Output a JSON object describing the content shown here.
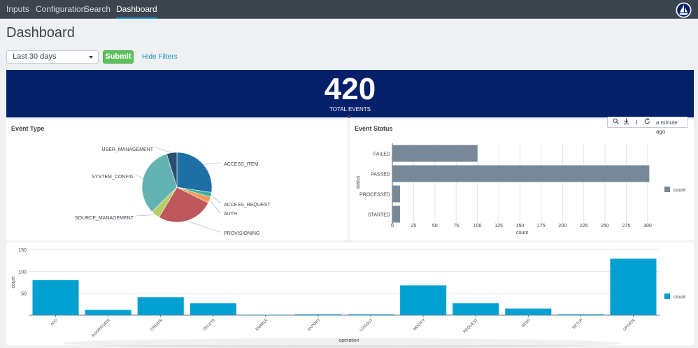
{
  "nav": {
    "items": [
      {
        "label": "Inputs"
      },
      {
        "label": "Configuration"
      },
      {
        "label": "Search"
      },
      {
        "label": "Dashboard"
      }
    ],
    "active": "Dashboard"
  },
  "page": {
    "title": "Dashboard"
  },
  "filters": {
    "time_range": "Last 30 days",
    "submit_label": "Submit",
    "hide_filters_label": "Hide Filters"
  },
  "single_value": {
    "value": "420",
    "label": "TOTAL EVENTS",
    "background": "#04206b"
  },
  "toolbar": {
    "icons": [
      "search-icon",
      "download-icon",
      "info-icon",
      "refresh-icon"
    ],
    "refresh_text": "a minute ago"
  },
  "panels": {
    "event_type": {
      "title": "Event Type"
    },
    "event_status": {
      "title": "Event Status"
    }
  },
  "chart_data": [
    {
      "type": "pie",
      "title": "Event Type",
      "slices": [
        {
          "label": "ACCESS_ITEM",
          "value": 115,
          "color": "#1e6fa3"
        },
        {
          "label": "ACCESS_REQUEST",
          "value": 9,
          "color": "#3db0a0"
        },
        {
          "label": "AUTH",
          "value": 12,
          "color": "#f29b58"
        },
        {
          "label": "PROVISIONING",
          "value": 110,
          "color": "#bd575b"
        },
        {
          "label": "SOURCE_MANAGEMENT",
          "value": 17,
          "color": "#b6cc64"
        },
        {
          "label": "SYSTEM_CONFIG",
          "value": 137,
          "color": "#62b3b1"
        },
        {
          "label": "USER_MANAGEMENT",
          "value": 20,
          "color": "#2b4d6e"
        }
      ]
    },
    {
      "type": "bar",
      "orientation": "horizontal",
      "title": "Event Status",
      "xlabel": "count",
      "ylabel": "status",
      "categories": [
        "FAILED",
        "PASSED",
        "PROCESSED",
        "STARTED"
      ],
      "series": [
        {
          "name": "count",
          "values": [
            100,
            302,
            9,
            9
          ],
          "color": "#778998"
        }
      ],
      "xlim": [
        0,
        305
      ],
      "xticks": [
        0,
        25,
        50,
        75,
        100,
        125,
        150,
        175,
        200,
        225,
        250,
        275,
        300
      ],
      "grid": true,
      "legend": "right"
    },
    {
      "type": "bar",
      "title": "",
      "xlabel": "operation",
      "ylabel": "count",
      "categories": [
        "ADD",
        "AGGREGATE",
        "CREATE",
        "DELETE",
        "ENABLE",
        "EXPORT",
        "LOGOUT",
        "MODIFY",
        "REQUEST",
        "SEND",
        "SETUP",
        "UPDATE"
      ],
      "series": [
        {
          "name": "count",
          "values": [
            80,
            12,
            41,
            27,
            1,
            2,
            2,
            68,
            27,
            15,
            2,
            129
          ],
          "color": "#00a0d1"
        }
      ],
      "ylim": [
        0,
        150
      ],
      "yticks": [
        50,
        100,
        150
      ],
      "grid": true,
      "legend": "right"
    }
  ]
}
